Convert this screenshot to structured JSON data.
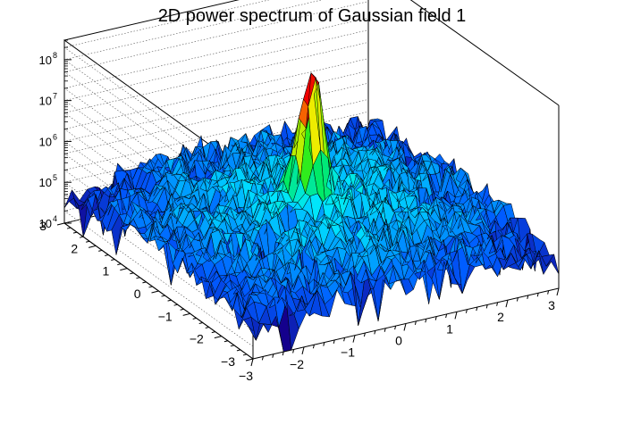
{
  "chart_data": {
    "type": "surface",
    "title": "2D power spectrum of Gaussian field 1",
    "xlabel": "",
    "ylabel": "",
    "zlabel": "",
    "xlim": [
      -3,
      3
    ],
    "ylim": [
      -3,
      3
    ],
    "zlim": [
      10000,
      300000000
    ],
    "zscale": "log",
    "x_ticks": [
      -3,
      -2,
      -1,
      0,
      1,
      2,
      3
    ],
    "y_ticks": [
      -3,
      -2,
      -1,
      0,
      1,
      2,
      3
    ],
    "x_tick_labels": [
      "−3",
      "−2",
      "−1",
      "0",
      "1",
      "2",
      "3"
    ],
    "y_tick_labels": [
      "−3",
      "−2",
      "−1",
      "0",
      "1",
      "2",
      "3"
    ],
    "z_ticks": [
      10000,
      100000,
      1000000,
      10000000,
      100000000
    ],
    "z_tick_labels": [
      {
        "base": "10",
        "exp": "4"
      },
      {
        "base": "10",
        "exp": "5"
      },
      {
        "base": "10",
        "exp": "6"
      },
      {
        "base": "10",
        "exp": "7"
      },
      {
        "base": "10",
        "exp": "8"
      }
    ],
    "surface": {
      "grid_n": 41,
      "background_level": 300000,
      "peak": {
        "x": 0,
        "y": 0,
        "value": 1000000000
      },
      "noise_decades": 0.35,
      "palette": "rainbow"
    },
    "colors": {
      "frame": "#000000",
      "grid": "#555555",
      "mesh_line": "#000000"
    }
  }
}
